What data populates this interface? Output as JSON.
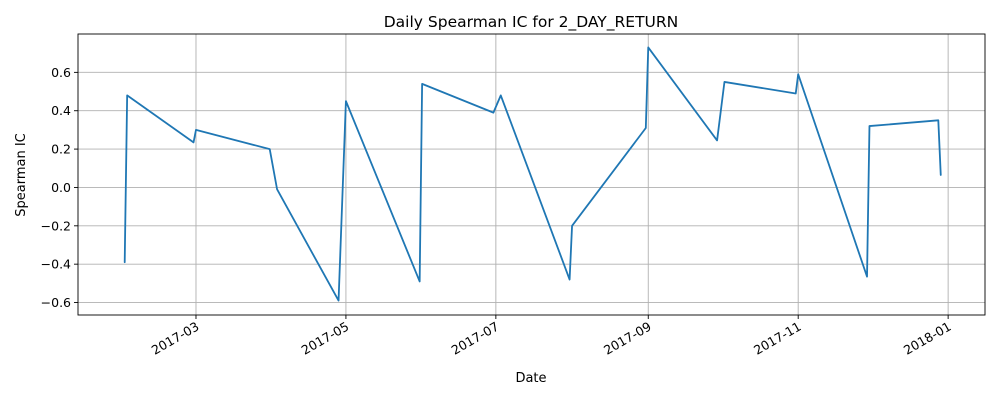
{
  "chart_data": {
    "type": "line",
    "title": "Daily Spearman IC for 2_DAY_RETURN",
    "xlabel": "Date",
    "ylabel": "Spearman IC",
    "x_tick_labels": [
      "2017-03",
      "2017-05",
      "2017-07",
      "2017-09",
      "2017-11",
      "2018-01"
    ],
    "x_tick_dates": [
      "2017-03-01",
      "2017-05-01",
      "2017-07-01",
      "2017-09-01",
      "2017-11-01",
      "2018-01-01"
    ],
    "y_ticks": [
      -0.6,
      -0.4,
      -0.2,
      0.0,
      0.2,
      0.4,
      0.6
    ],
    "y_tick_labels": [
      "−0.6",
      "−0.4",
      "−0.2",
      "0.0",
      "0.2",
      "0.4",
      "0.6"
    ],
    "xlim": [
      "2017-01-12",
      "2018-01-16"
    ],
    "ylim": [
      -0.665,
      0.8
    ],
    "grid": true,
    "line_color": "#1f77b4",
    "series": [
      {
        "x": [
          "2017-01-31",
          "2017-02-01",
          "2017-02-28",
          "2017-03-01",
          "2017-03-31",
          "2017-04-03",
          "2017-04-28",
          "2017-05-01",
          "2017-05-31",
          "2017-06-01",
          "2017-06-30",
          "2017-07-03",
          "2017-07-31",
          "2017-08-01",
          "2017-08-31",
          "2017-09-01",
          "2017-09-29",
          "2017-10-02",
          "2017-10-31",
          "2017-11-01",
          "2017-11-29",
          "2017-11-30",
          "2017-12-28",
          "2017-12-29"
        ],
        "values": [
          -0.39,
          0.48,
          0.235,
          0.3,
          0.2,
          -0.01,
          -0.59,
          0.45,
          -0.49,
          0.54,
          0.39,
          0.48,
          -0.48,
          -0.2,
          0.31,
          0.73,
          0.245,
          0.55,
          0.49,
          0.59,
          -0.465,
          0.32,
          0.35,
          0.065
        ]
      }
    ]
  }
}
